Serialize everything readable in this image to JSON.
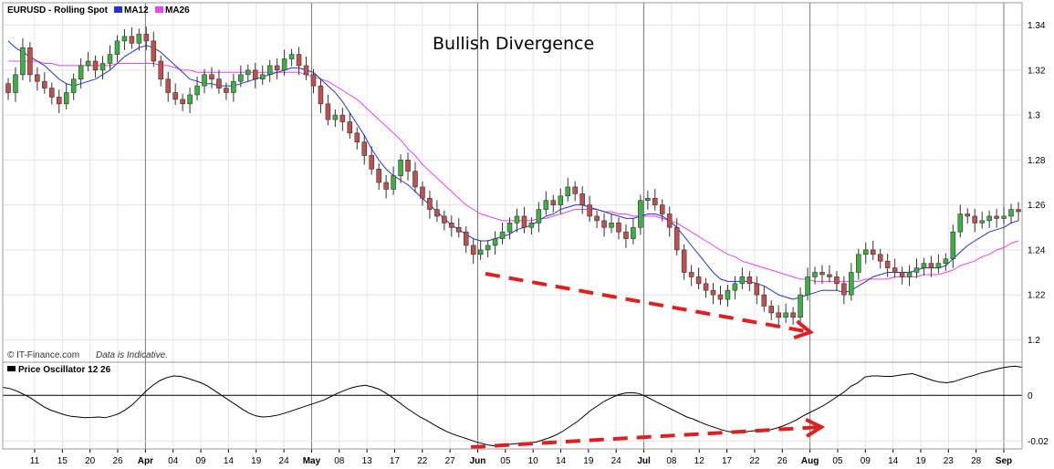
{
  "chart_data": [
    {
      "type": "candlestick",
      "panel": "price",
      "legend": {
        "instrument": "EURUSD - Rolling Spot",
        "ma12": "MA12",
        "ma26": "MA26"
      },
      "annotation": "Bullish Divergence",
      "credit": "© IT-Finance.com",
      "disclaimer": "Data is Indicative.",
      "colors": {
        "up": "#3cb043",
        "down": "#c0504d",
        "ma12": "#2233dd",
        "ma26": "#ee44ee",
        "arrow": "#e02020"
      },
      "y_ticks": [
        "1.34",
        "1.32",
        "1.3",
        "1.28",
        "1.26",
        "1.24",
        "1.22",
        "1.2"
      ],
      "y_tick_values": [
        1.34,
        1.32,
        1.3,
        1.28,
        1.26,
        1.24,
        1.22,
        1.2
      ],
      "ylim": [
        1.19,
        1.35
      ],
      "x_ticks": [
        "11",
        "15",
        "20",
        "26",
        "Apr",
        "04",
        "09",
        "14",
        "19",
        "24",
        "May",
        "08",
        "13",
        "17",
        "22",
        "27",
        "Jun",
        "05",
        "10",
        "14",
        "19",
        "24",
        "Jul",
        "08",
        "12",
        "17",
        "22",
        "26",
        "Aug",
        "05",
        "09",
        "14",
        "19",
        "23",
        "28",
        "Sep"
      ],
      "closes": [
        1.31,
        1.318,
        1.33,
        1.318,
        1.315,
        1.312,
        1.308,
        1.305,
        1.31,
        1.316,
        1.322,
        1.324,
        1.32,
        1.323,
        1.327,
        1.333,
        1.335,
        1.332,
        1.336,
        1.333,
        1.324,
        1.316,
        1.31,
        1.307,
        1.305,
        1.309,
        1.313,
        1.318,
        1.316,
        1.312,
        1.31,
        1.315,
        1.318,
        1.32,
        1.316,
        1.318,
        1.322,
        1.32,
        1.325,
        1.327,
        1.322,
        1.318,
        1.313,
        1.305,
        1.298,
        1.3,
        1.297,
        1.292,
        1.288,
        1.282,
        1.276,
        1.27,
        1.267,
        1.273,
        1.28,
        1.275,
        1.268,
        1.263,
        1.258,
        1.255,
        1.252,
        1.25,
        1.248,
        1.242,
        1.238,
        1.24,
        1.242,
        1.245,
        1.248,
        1.252,
        1.255,
        1.25,
        1.252,
        1.258,
        1.262,
        1.26,
        1.264,
        1.268,
        1.265,
        1.26,
        1.255,
        1.253,
        1.25,
        1.252,
        1.248,
        1.245,
        1.25,
        1.262,
        1.263,
        1.26,
        1.256,
        1.25,
        1.24,
        1.23,
        1.228,
        1.225,
        1.222,
        1.22,
        1.218,
        1.222,
        1.225,
        1.228,
        1.225,
        1.22,
        1.215,
        1.212,
        1.21,
        1.212,
        1.21,
        1.22,
        1.228,
        1.23,
        1.229,
        1.228,
        1.225,
        1.22,
        1.23,
        1.238,
        1.24,
        1.238,
        1.235,
        1.232,
        1.23,
        1.228,
        1.23,
        1.232,
        1.234,
        1.232,
        1.234,
        1.236,
        1.248,
        1.256,
        1.255,
        1.252,
        1.253,
        1.255,
        1.254,
        1.255,
        1.258,
        1.257
      ],
      "ma12": [
        1.333,
        1.33,
        1.328,
        1.326,
        1.324,
        1.322,
        1.319,
        1.316,
        1.314,
        1.313,
        1.314,
        1.315,
        1.316,
        1.318,
        1.32,
        1.323,
        1.326,
        1.328,
        1.33,
        1.331,
        1.33,
        1.328,
        1.325,
        1.322,
        1.319,
        1.316,
        1.315,
        1.314,
        1.314,
        1.313,
        1.313,
        1.313,
        1.314,
        1.315,
        1.316,
        1.317,
        1.318,
        1.319,
        1.32,
        1.321,
        1.321,
        1.32,
        1.319,
        1.316,
        1.313,
        1.31,
        1.306,
        1.301,
        1.296,
        1.291,
        1.285,
        1.28,
        1.276,
        1.273,
        1.271,
        1.269,
        1.266,
        1.263,
        1.26,
        1.257,
        1.254,
        1.251,
        1.249,
        1.247,
        1.245,
        1.244,
        1.244,
        1.245,
        1.246,
        1.247,
        1.249,
        1.25,
        1.251,
        1.253,
        1.255,
        1.256,
        1.258,
        1.259,
        1.26,
        1.26,
        1.259,
        1.258,
        1.257,
        1.256,
        1.255,
        1.254,
        1.254,
        1.255,
        1.256,
        1.256,
        1.255,
        1.253,
        1.25,
        1.246,
        1.242,
        1.238,
        1.234,
        1.23,
        1.227,
        1.226,
        1.226,
        1.226,
        1.226,
        1.225,
        1.224,
        1.222,
        1.22,
        1.219,
        1.218,
        1.219,
        1.22,
        1.221,
        1.222,
        1.222,
        1.222,
        1.221,
        1.222,
        1.224,
        1.226,
        1.228,
        1.229,
        1.23,
        1.23,
        1.23,
        1.23,
        1.231,
        1.232,
        1.232,
        1.232,
        1.233,
        1.236,
        1.239,
        1.242,
        1.244,
        1.246,
        1.248,
        1.249,
        1.25,
        1.252,
        1.253
      ],
      "ma26": [
        1.324,
        1.324,
        1.324,
        1.324,
        1.324,
        1.323,
        1.323,
        1.322,
        1.322,
        1.322,
        1.322,
        1.322,
        1.322,
        1.322,
        1.322,
        1.323,
        1.323,
        1.323,
        1.323,
        1.323,
        1.323,
        1.322,
        1.322,
        1.321,
        1.32,
        1.32,
        1.319,
        1.319,
        1.319,
        1.319,
        1.319,
        1.319,
        1.319,
        1.319,
        1.319,
        1.319,
        1.319,
        1.319,
        1.319,
        1.319,
        1.319,
        1.318,
        1.317,
        1.316,
        1.315,
        1.313,
        1.311,
        1.309,
        1.307,
        1.304,
        1.301,
        1.298,
        1.295,
        1.292,
        1.289,
        1.285,
        1.282,
        1.278,
        1.275,
        1.272,
        1.269,
        1.266,
        1.263,
        1.26,
        1.258,
        1.256,
        1.255,
        1.254,
        1.253,
        1.253,
        1.253,
        1.253,
        1.253,
        1.254,
        1.254,
        1.255,
        1.256,
        1.257,
        1.258,
        1.258,
        1.258,
        1.258,
        1.257,
        1.257,
        1.256,
        1.256,
        1.255,
        1.255,
        1.255,
        1.255,
        1.254,
        1.253,
        1.252,
        1.25,
        1.248,
        1.246,
        1.244,
        1.242,
        1.24,
        1.238,
        1.237,
        1.235,
        1.234,
        1.233,
        1.232,
        1.231,
        1.23,
        1.229,
        1.228,
        1.227,
        1.227,
        1.226,
        1.226,
        1.226,
        1.226,
        1.226,
        1.226,
        1.226,
        1.227,
        1.227,
        1.227,
        1.227,
        1.228,
        1.228,
        1.228,
        1.228,
        1.229,
        1.229,
        1.229,
        1.23,
        1.231,
        1.233,
        1.234,
        1.235,
        1.237,
        1.238,
        1.24,
        1.241,
        1.243,
        1.244
      ]
    },
    {
      "type": "line",
      "panel": "oscillator",
      "legend": "Price Oscillator 12 26",
      "y_ticks": [
        "0",
        "-0.02"
      ],
      "y_tick_values": [
        0,
        -0.02
      ],
      "ylim": [
        -0.0235,
        0.0145
      ],
      "values": [
        0.0035,
        0.003,
        0.002,
        0.0005,
        -0.001,
        -0.003,
        -0.005,
        -0.0065,
        -0.0075,
        -0.0085,
        -0.0092,
        -0.0095,
        -0.0098,
        -0.0097,
        -0.0095,
        -0.0098,
        -0.009,
        -0.008,
        -0.0062,
        -0.004,
        -0.001,
        0.002,
        0.0045,
        0.0065,
        0.0078,
        0.0085,
        0.0083,
        0.0075,
        0.0065,
        0.0055,
        0.004,
        0.002,
        0.0,
        -0.002,
        -0.004,
        -0.006,
        -0.0078,
        -0.009,
        -0.0095,
        -0.0093,
        -0.0088,
        -0.008,
        -0.007,
        -0.006,
        -0.005,
        -0.004,
        -0.003,
        -0.002,
        -0.0005,
        0.001,
        0.0022,
        0.0033,
        0.004,
        0.0044,
        0.0037,
        0.0027,
        0.001,
        -0.001,
        -0.0032,
        -0.0055,
        -0.0075,
        -0.0095,
        -0.011,
        -0.0128,
        -0.0145,
        -0.016,
        -0.0172,
        -0.0182,
        -0.0192,
        -0.0202,
        -0.021,
        -0.0218,
        -0.0222,
        -0.022,
        -0.0215,
        -0.0212,
        -0.021,
        -0.0208,
        -0.0205,
        -0.0195,
        -0.0185,
        -0.0172,
        -0.0155,
        -0.0135,
        -0.0115,
        -0.009,
        -0.0065,
        -0.0045,
        -0.0025,
        -0.001,
        0.0003,
        0.001,
        0.0012,
        0.0008,
        -0.0005,
        -0.002,
        -0.0036,
        -0.005,
        -0.0065,
        -0.008,
        -0.0095,
        -0.0105,
        -0.0118,
        -0.013,
        -0.014,
        -0.015,
        -0.0158,
        -0.0163,
        -0.0165,
        -0.0158,
        -0.0155,
        -0.0155,
        -0.0152,
        -0.0145,
        -0.0135,
        -0.0122,
        -0.0108,
        -0.009,
        -0.0075,
        -0.006,
        -0.0045,
        -0.0025,
        -0.0005,
        0.0015,
        0.004,
        0.0055,
        0.008,
        0.0085,
        0.0085,
        0.0083,
        0.0083,
        0.0088,
        0.0092,
        0.0095,
        0.0085,
        0.0075,
        0.0065,
        0.0058,
        0.0055,
        0.006,
        0.007,
        0.008,
        0.0088,
        0.0098,
        0.0105,
        0.0113,
        0.012,
        0.0125,
        0.0128,
        0.0123
      ]
    }
  ]
}
